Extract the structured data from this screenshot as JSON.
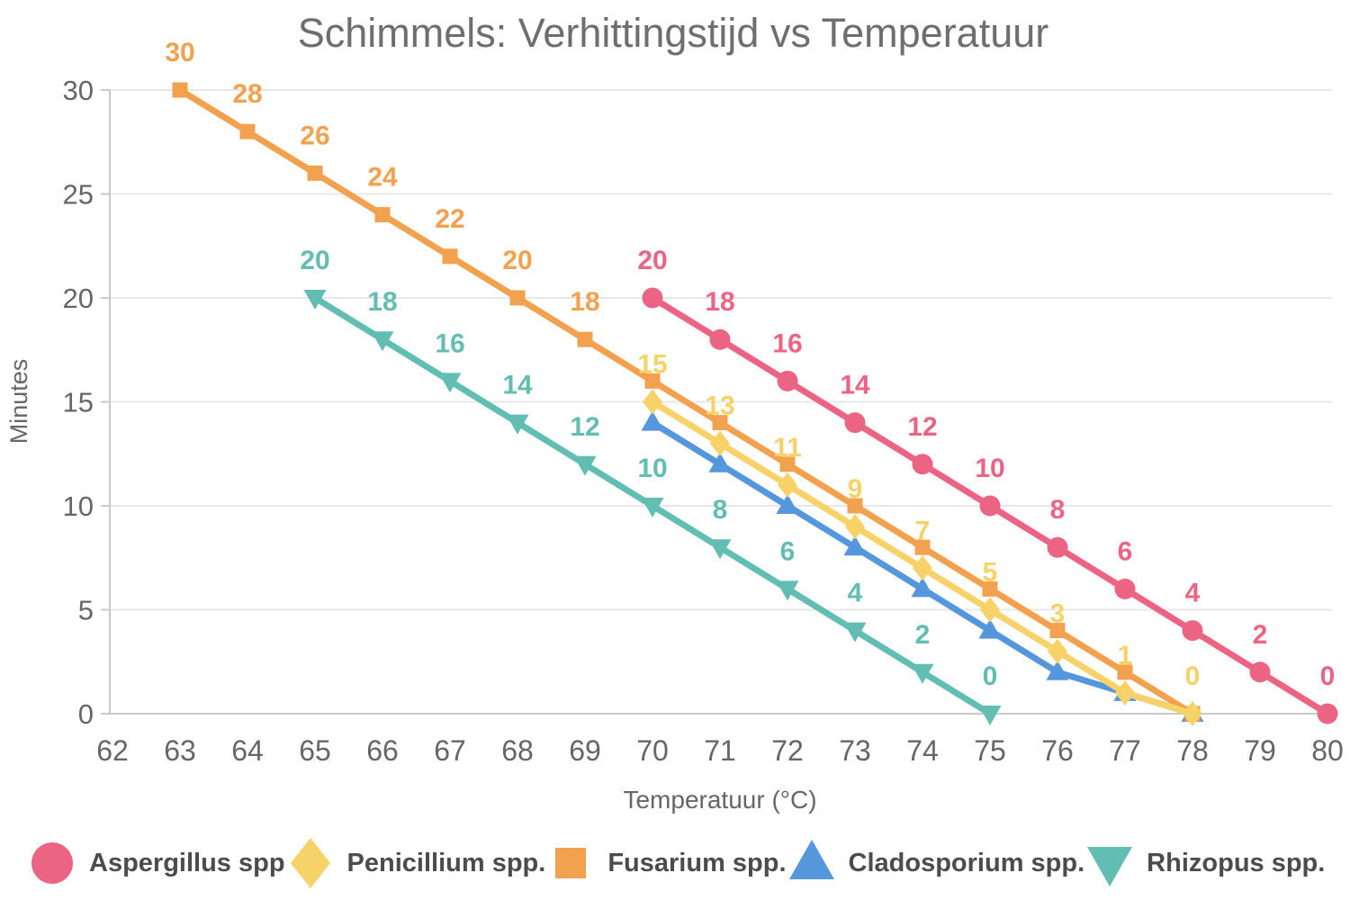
{
  "title": "Schimmels: Verhittingstijd vs Temperatuur",
  "colors": {
    "background": "#ffffff",
    "title_text": "#6e6e6e",
    "axis_text": "#666666",
    "legend_text": "#4c4c4c",
    "gridline": "#e8e8e8",
    "axis_line": "#c9c9c9"
  },
  "chart_data": {
    "type": "line",
    "title": "Schimmels: Verhittingstijd vs Temperatuur",
    "xlabel": "Temperatuur (°C)",
    "ylabel": "Minutes",
    "xlim": [
      62,
      80
    ],
    "ylim": [
      0,
      30
    ],
    "x_ticks": [
      62,
      63,
      64,
      65,
      66,
      67,
      68,
      69,
      70,
      71,
      72,
      73,
      74,
      75,
      76,
      77,
      78,
      79,
      80
    ],
    "y_ticks": [
      0,
      5,
      10,
      15,
      20,
      25,
      30
    ],
    "grid": "horizontal-only",
    "legend_position": "bottom",
    "series": [
      {
        "name": "Aspergillus spp",
        "color": "#ec6484",
        "marker": "circle",
        "x": [
          70,
          71,
          72,
          73,
          74,
          75,
          76,
          77,
          78,
          79,
          80
        ],
        "values": [
          20,
          18,
          16,
          14,
          12,
          10,
          8,
          6,
          4,
          2,
          0
        ],
        "point_labels": [
          "20",
          "18",
          "16",
          "14",
          "12",
          "10",
          "8",
          "6",
          "4",
          "2",
          "0"
        ]
      },
      {
        "name": "Penicillium spp.",
        "color": "#f6d269",
        "marker": "diamond",
        "x": [
          70,
          71,
          72,
          73,
          74,
          75,
          76,
          77,
          78
        ],
        "values": [
          15,
          13,
          11,
          9,
          7,
          5,
          3,
          1,
          0
        ],
        "point_labels": [
          "15",
          "13",
          "11",
          "9",
          "7",
          "5",
          "3",
          "1",
          "0"
        ]
      },
      {
        "name": "Fusarium spp.",
        "color": "#f2a24f",
        "marker": "square",
        "x": [
          63,
          64,
          65,
          66,
          67,
          68,
          69,
          70,
          71,
          72,
          73,
          74,
          75,
          76,
          77,
          78
        ],
        "values": [
          30,
          28,
          26,
          24,
          22,
          20,
          18,
          16,
          14,
          12,
          10,
          8,
          6,
          4,
          2,
          0
        ],
        "point_labels": [
          "30",
          "28",
          "26",
          "24",
          "22",
          "20",
          "18",
          "",
          "",
          "",
          "",
          "",
          "",
          "",
          "",
          ""
        ]
      },
      {
        "name": "Cladosporium spp.",
        "color": "#5597dd",
        "marker": "triangle-up",
        "x": [
          70,
          71,
          72,
          73,
          74,
          75,
          76,
          77,
          78
        ],
        "values": [
          14,
          12,
          10,
          8,
          6,
          4,
          2,
          1,
          0
        ],
        "point_labels": [
          "",
          "",
          "",
          "",
          "",
          "",
          "",
          "",
          ""
        ]
      },
      {
        "name": "Rhizopus spp.",
        "color": "#62bdb3",
        "marker": "triangle-down",
        "x": [
          65,
          66,
          67,
          68,
          69,
          70,
          71,
          72,
          73,
          74,
          75
        ],
        "values": [
          20,
          18,
          16,
          14,
          12,
          10,
          8,
          6,
          4,
          2,
          0
        ],
        "point_labels": [
          "20",
          "18",
          "16",
          "14",
          "12",
          "10",
          "8",
          "6",
          "4",
          "2",
          "0"
        ]
      }
    ]
  }
}
